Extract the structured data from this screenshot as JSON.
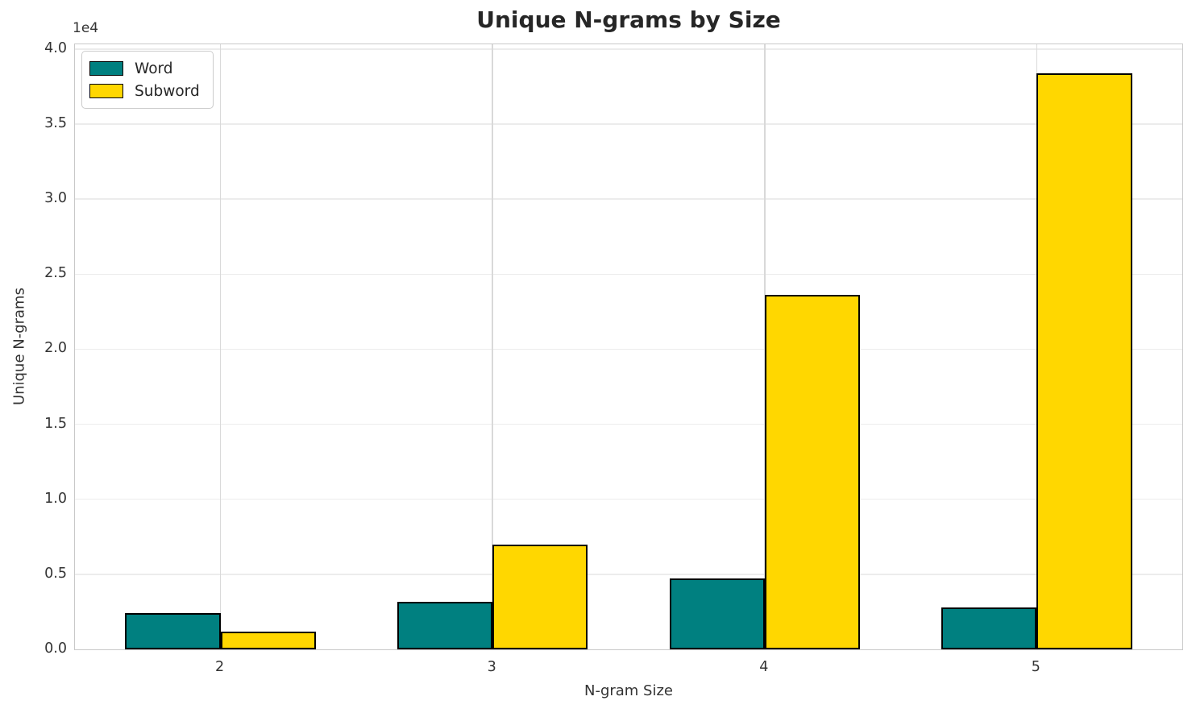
{
  "chart_data": {
    "type": "bar",
    "title": "Unique N-grams by Size",
    "xlabel": "N-gram Size",
    "ylabel": "Unique N-grams",
    "offset_text": "1e4",
    "categories": [
      "2",
      "3",
      "4",
      "5"
    ],
    "series": [
      {
        "name": "Word",
        "color": "#008080",
        "values": [
          2400,
          3150,
          4700,
          2800
        ]
      },
      {
        "name": "Subword",
        "color": "#FFD700",
        "values": [
          1200,
          7000,
          23600,
          38400
        ]
      }
    ],
    "bar_width": 0.35,
    "x_margin": 0.05,
    "ylim": [
      0,
      40320
    ],
    "ytick_values": [
      0,
      5000,
      10000,
      15000,
      20000,
      25000,
      30000,
      35000,
      40000
    ],
    "ytick_labels": [
      "0.0",
      "0.5",
      "1.0",
      "1.5",
      "2.0",
      "2.5",
      "3.0",
      "3.5",
      "4.0"
    ],
    "grid": true,
    "legend_position": "upper left",
    "colors": {
      "bar_edge": "#000000",
      "grid_h": "#ececec",
      "grid_v": "#d9d9d9",
      "spine": "#c9c9c9",
      "title_text": "#262626",
      "tick_text": "#333333"
    }
  }
}
